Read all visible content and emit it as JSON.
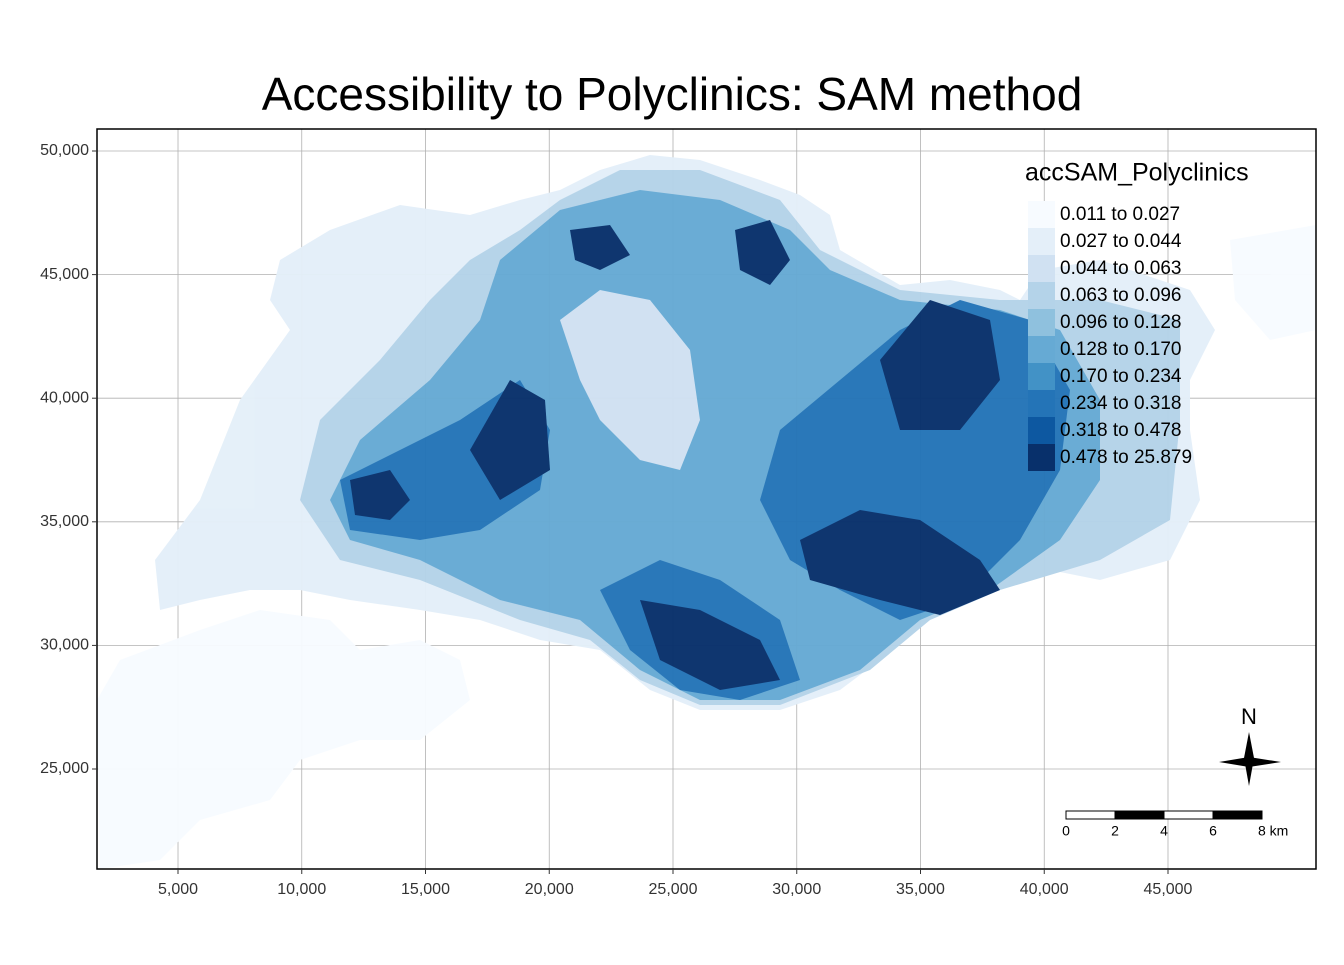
{
  "title": "Accessibility to Polyclinics: SAM method",
  "axes": {
    "xlim": [
      1727,
      50980
    ],
    "ylim": [
      20955,
      50890
    ],
    "xticks": [
      {
        "value": 5000,
        "label": "5,000"
      },
      {
        "value": 10000,
        "label": "10,000"
      },
      {
        "value": 15000,
        "label": "15,000"
      },
      {
        "value": 20000,
        "label": "20,000"
      },
      {
        "value": 25000,
        "label": "25,000"
      },
      {
        "value": 30000,
        "label": "30,000"
      },
      {
        "value": 35000,
        "label": "35,000"
      },
      {
        "value": 40000,
        "label": "40,000"
      },
      {
        "value": 45000,
        "label": "45,000"
      }
    ],
    "yticks": [
      {
        "value": 25000,
        "label": "25,000"
      },
      {
        "value": 30000,
        "label": "30,000"
      },
      {
        "value": 35000,
        "label": "35,000"
      },
      {
        "value": 40000,
        "label": "40,000"
      },
      {
        "value": 45000,
        "label": "45,000"
      },
      {
        "value": 50000,
        "label": "50,000"
      }
    ],
    "grid": true
  },
  "legend": {
    "title": "accSAM_Polyclinics",
    "items": [
      {
        "label": "0.011 to 0.027",
        "color": "#f7fbff"
      },
      {
        "label": "0.027 to 0.044",
        "color": "#e4eff9"
      },
      {
        "label": "0.044 to 0.063",
        "color": "#d0e1f2"
      },
      {
        "label": "0.063 to 0.096",
        "color": "#b4d3e9"
      },
      {
        "label": "0.096 to 0.128",
        "color": "#8fc1de"
      },
      {
        "label": "0.128 to 0.170",
        "color": "#66aad4"
      },
      {
        "label": "0.170 to 0.234",
        "color": "#4292c6"
      },
      {
        "label": "0.234 to 0.318",
        "color": "#2474b7"
      },
      {
        "label": "0.318 to 0.478",
        "color": "#0d58a1"
      },
      {
        "label": "0.478 to 25.879",
        "color": "#08306b"
      }
    ]
  },
  "north_label": "N",
  "scale_bar": {
    "labels": [
      "0",
      "2",
      "4",
      "6",
      "8 km"
    ]
  }
}
